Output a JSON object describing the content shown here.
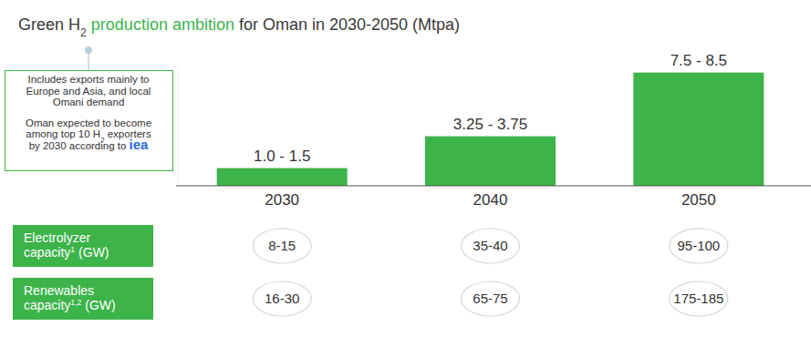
{
  "chart_data": {
    "type": "bar",
    "title": [
      {
        "text": "Green H"
      },
      {
        "text": "2",
        "style": "sub"
      },
      {
        "text": " production ambition",
        "color": "#3cb44a"
      },
      {
        "text": " for Oman in 2030-2050 (Mtpa)"
      }
    ],
    "categories": [
      "2030",
      "2040",
      "2050"
    ],
    "values": [
      1.25,
      3.5,
      8
    ],
    "value_labels": [
      "1.0 - 1.5",
      "3.25 - 3.75",
      "7.5 - 8.5"
    ],
    "color": "#3cb44a",
    "ylim": [
      0,
      8.3
    ],
    "data_labels": true,
    "tick_labels": "x",
    "annotations": [
      {
        "lines": [
          [
            {
              "text": "Includes exports mainly to"
            }
          ],
          [
            {
              "text": "Europe and Asia, and local"
            }
          ],
          [
            {
              "text": "Omani demand"
            }
          ]
        ]
      },
      {
        "lines": [
          [
            {
              "text": "Oman expected to become"
            }
          ],
          [
            {
              "text": "among top 10 H"
            },
            {
              "text": "2",
              "style": "sub"
            },
            {
              "text": " exporters"
            }
          ],
          [
            {
              "text": "by 2030 according to "
            },
            {
              "text": "iea",
              "style": "logo"
            }
          ]
        ]
      }
    ]
  },
  "table": {
    "rows": [
      {
        "label": [
          [
            {
              "text": "Electrolyzer"
            }
          ],
          [
            {
              "text": "capacity"
            },
            {
              "text": "1",
              "style": "sup"
            },
            {
              "text": " (GW)"
            }
          ]
        ],
        "values": [
          "8-15",
          "35-40",
          "95-100"
        ]
      },
      {
        "label": [
          [
            {
              "text": "Renewables"
            }
          ],
          [
            {
              "text": "capacity"
            },
            {
              "text": "1,2",
              "style": "sup"
            },
            {
              "text": " (GW)"
            }
          ]
        ],
        "values": [
          "16-30",
          "65-75",
          "175-185"
        ]
      }
    ]
  }
}
